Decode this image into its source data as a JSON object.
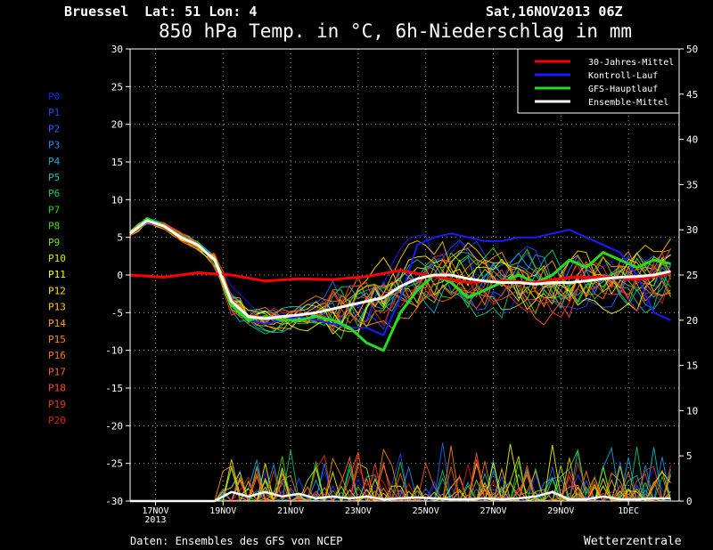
{
  "header": {
    "location": "Bruessel",
    "coords": "Lat: 51 Lon: 4",
    "run": "Sat,16NOV2013 06Z"
  },
  "footer": {
    "source": "Daten: Ensembles des GFS von NCEP",
    "brand": "Wetterzentrale"
  },
  "member_labels": [
    "P0",
    "P1",
    "P2",
    "P3",
    "P4",
    "P5",
    "P6",
    "P7",
    "P8",
    "P9",
    "P10",
    "P11",
    "P12",
    "P13",
    "P14",
    "P15",
    "P16",
    "P17",
    "P18",
    "P19",
    "P20"
  ],
  "member_colors": [
    "#1a1aff",
    "#2244ff",
    "#1f66ff",
    "#1e90ff",
    "#00b4e0",
    "#00c8c0",
    "#00d070",
    "#22d822",
    "#44e000",
    "#88e000",
    "#ccee00",
    "#ffff00",
    "#ffe000",
    "#ffcc00",
    "#ffa000",
    "#ff8c00",
    "#ff7020",
    "#ff5c30",
    "#ff4530",
    "#ee3020",
    "#dd2010"
  ],
  "chart_data": {
    "type": "line",
    "title": "850 hPa Temp. in °C, 6h-Niederschlag in mm",
    "x_range": [
      "2013-11-16 06Z",
      "2013-12-02 12Z"
    ],
    "x_ticks": [
      {
        "t": 0.75,
        "label": "17NOV",
        "sub": "2013"
      },
      {
        "t": 2.75,
        "label": "19NOV",
        "sub": ""
      },
      {
        "t": 4.75,
        "label": "21NOV",
        "sub": ""
      },
      {
        "t": 6.75,
        "label": "23NOV",
        "sub": ""
      },
      {
        "t": 8.75,
        "label": "25NOV",
        "sub": ""
      },
      {
        "t": 10.75,
        "label": "27NOV",
        "sub": ""
      },
      {
        "t": 12.75,
        "label": "29NOV",
        "sub": ""
      },
      {
        "t": 14.75,
        "label": "1DEC",
        "sub": ""
      }
    ],
    "y_left": {
      "min": -30,
      "max": 30,
      "ticks": [
        30,
        25,
        20,
        15,
        10,
        5,
        0,
        -5,
        -10,
        -15,
        -20,
        -25,
        -30
      ]
    },
    "y_right": {
      "min": 0,
      "max": 50,
      "ticks": [
        50,
        45,
        40,
        35,
        30,
        25,
        20,
        15,
        10,
        5,
        0
      ]
    },
    "grid": true,
    "legend_position": "top-right",
    "legend": [
      {
        "name": "30-Jahres-Mittel",
        "color": "#ff0000"
      },
      {
        "name": "Kontroll-Lauf",
        "color": "#1a1aff"
      },
      {
        "name": "GFS-Hauptlauf",
        "color": "#22dd22"
      },
      {
        "name": "Ensemble-Mittel",
        "color": "#ffffff"
      }
    ],
    "series": [
      {
        "name": "30-Jahres-Mittel",
        "axis": "left",
        "t": [
          0,
          1,
          2,
          3,
          4,
          5,
          6,
          7,
          8,
          9,
          10,
          11,
          12,
          13,
          14,
          15,
          16
        ],
        "values": [
          0,
          -0.3,
          0.3,
          0,
          -0.8,
          -0.5,
          -0.6,
          -0.2,
          0.6,
          -0.2,
          -1.0,
          -0.8,
          -1.0,
          -0.3,
          -0.3,
          -0.6,
          0.2
        ]
      },
      {
        "name": "Kontroll-Lauf",
        "axis": "left",
        "t": [
          0,
          0.5,
          1,
          1.5,
          2,
          2.5,
          3,
          3.5,
          4,
          4.5,
          5,
          5.5,
          6,
          6.5,
          7,
          7.5,
          8,
          8.5,
          9,
          9.5,
          10,
          10.5,
          11,
          11.5,
          12,
          12.5,
          13,
          13.5,
          14,
          14.5,
          15,
          15.5,
          16
        ],
        "values": [
          5.5,
          7,
          6.5,
          5,
          4,
          2,
          -4,
          -6,
          -6.5,
          -6,
          -5.5,
          -6,
          -6.5,
          -7,
          -7,
          -8,
          -3,
          4,
          5,
          5.5,
          5,
          4.5,
          4.5,
          5,
          5,
          5.5,
          6,
          5,
          4,
          3,
          0,
          -5,
          -6
        ]
      },
      {
        "name": "GFS-Hauptlauf",
        "axis": "left",
        "t": [
          0,
          0.5,
          1,
          1.5,
          2,
          2.5,
          3,
          3.5,
          4,
          4.5,
          5,
          5.5,
          6,
          6.5,
          7,
          7.5,
          8,
          8.5,
          9,
          9.5,
          10,
          10.5,
          11,
          11.5,
          12,
          12.5,
          13,
          13.5,
          14,
          14.5,
          15,
          15.5,
          16
        ],
        "values": [
          5.5,
          7.5,
          6.5,
          5,
          4,
          2,
          -4,
          -6,
          -5.5,
          -6,
          -6,
          -5.5,
          -6,
          -7,
          -9,
          -10,
          -5,
          -2,
          0,
          -1,
          -3,
          -2,
          -1,
          0,
          -1,
          0,
          2,
          1,
          3,
          2,
          1,
          2,
          1.5
        ]
      },
      {
        "name": "Ensemble-Mittel",
        "axis": "left",
        "t": [
          0,
          0.5,
          1,
          1.5,
          2,
          2.5,
          3,
          3.5,
          4,
          4.5,
          5,
          5.5,
          6,
          6.5,
          7,
          7.5,
          8,
          8.5,
          9,
          9.5,
          10,
          10.5,
          11,
          11.5,
          12,
          12.5,
          13,
          13.5,
          14,
          14.5,
          15,
          15.5,
          16
        ],
        "values": [
          5.5,
          7.2,
          6.5,
          5,
          4,
          2,
          -3.5,
          -5.5,
          -5.8,
          -5.5,
          -5.3,
          -5,
          -4.5,
          -4,
          -3.5,
          -3,
          -1.5,
          -0.5,
          0,
          0,
          -0.5,
          -0.8,
          -1,
          -1,
          -1.2,
          -1,
          -1,
          -0.8,
          -0.5,
          -0.3,
          -0.2,
          0,
          0.5
        ]
      }
    ],
    "precip_mean": {
      "axis": "right",
      "t": [
        0,
        2,
        2.5,
        3,
        3.5,
        4,
        4.5,
        5,
        5.5,
        6,
        6.5,
        7,
        7.5,
        8,
        8.5,
        9,
        9.5,
        10,
        10.5,
        11,
        11.5,
        12,
        12.5,
        13,
        13.5,
        14,
        14.5,
        15,
        15.5,
        16
      ],
      "values": [
        0,
        0,
        0,
        1,
        0.5,
        1,
        0.5,
        0.8,
        0.3,
        0.5,
        0.3,
        0.5,
        0.2,
        0.3,
        0.4,
        0.3,
        0.2,
        0.2,
        0.3,
        0.2,
        0.3,
        0.5,
        1,
        0.2,
        0.2,
        0.5,
        0.2,
        0.2,
        0.3,
        0.3
      ]
    }
  }
}
